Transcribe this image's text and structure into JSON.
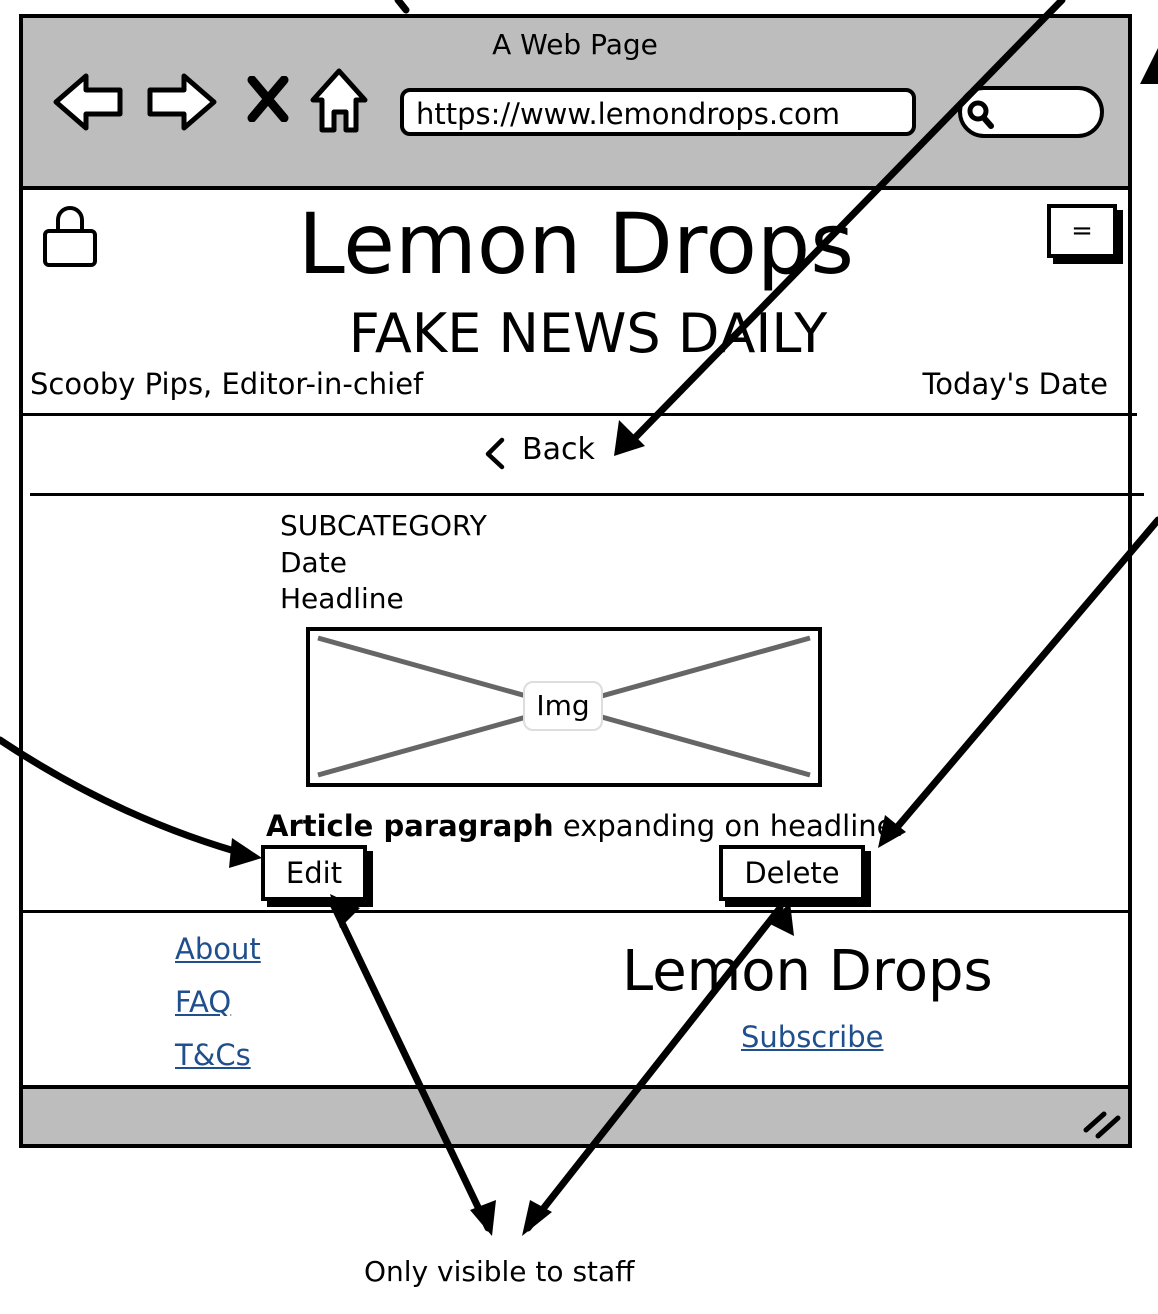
{
  "browser": {
    "window_title": "A Web Page",
    "url": "https://www.lemondrops.com",
    "search": {
      "value": ""
    }
  },
  "site": {
    "title": "Lemon Drops",
    "subtitle": "FAKE NEWS DAILY",
    "editor": "Scooby Pips, Editor-in-chief",
    "date_label": "Today's Date",
    "menu_button_label": "="
  },
  "nav": {
    "back_label": "Back"
  },
  "article": {
    "subcategory": "SUBCATEGORY",
    "date": "Date",
    "headline": "Headline",
    "image_label": "Img",
    "paragraph_bold": "Article paragraph",
    "paragraph_rest": " expanding on headline.",
    "edit_label": "Edit",
    "delete_label": "Delete"
  },
  "footer": {
    "links": [
      {
        "label": "About"
      },
      {
        "label": "FAQ"
      },
      {
        "label": "T&Cs"
      }
    ],
    "brand": "Lemon Drops",
    "subscribe_label": "Subscribe"
  },
  "annotations": {
    "staff_note": "Only visible to staff"
  }
}
